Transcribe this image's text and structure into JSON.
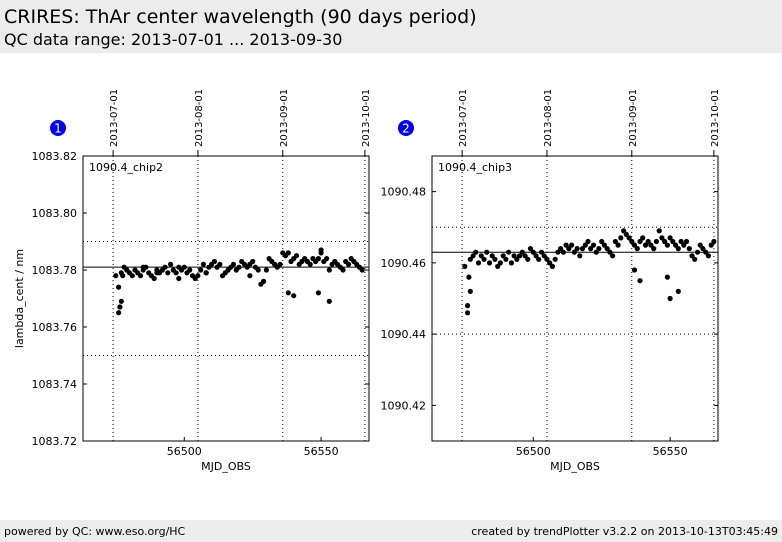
{
  "header": {
    "title": "CRIRES: ThAr center wavelength (90 days period)",
    "subtitle": "QC data range: 2013-07-01 ... 2013-09-30"
  },
  "footer": {
    "left": "powered by QC: www.eso.org/HC",
    "right": "created by trendPlotter v3.2.2 on 2013-10-13T03:45:49"
  },
  "colors": {
    "badge": "#0000ee",
    "marker": "#000000",
    "background": "#ffffff",
    "band": "#ececec"
  },
  "chart_data": [
    {
      "type": "scatter",
      "badge": "1",
      "label": "1090.4_chip2",
      "xlabel": "MJD_OBS",
      "ylabel": "lambda_cent / nm",
      "xlim": [
        56463.0,
        56567.5
      ],
      "ylim": [
        1083.72,
        1083.82
      ],
      "yticks": [
        "1083.72",
        "1083.74",
        "1083.76",
        "1083.78",
        "1083.80",
        "1083.82"
      ],
      "xticks": [
        "56500",
        "56550"
      ],
      "date_ticks": [
        {
          "x": 56474,
          "label": "2013-07-01"
        },
        {
          "x": 56505,
          "label": "2013-08-01"
        },
        {
          "x": 56536,
          "label": "2013-09-01"
        },
        {
          "x": 56566,
          "label": "2013-10-01"
        }
      ],
      "reference_line": 1083.781,
      "limit_lines": [
        1083.79,
        1083.75
      ],
      "grid": "dotted vertical at date ticks",
      "x": [
        56475,
        56476,
        56476.5,
        56477,
        56477.5,
        56478,
        56479,
        56480,
        56481,
        56482,
        56483,
        56484,
        56485,
        56486,
        56487,
        56488,
        56489,
        56490,
        56491,
        56492,
        56493,
        56494,
        56495,
        56496,
        56497,
        56498,
        56499,
        56500,
        56501,
        56502,
        56503,
        56504,
        56505,
        56506,
        56507,
        56508,
        56509,
        56510,
        56511,
        56512,
        56513,
        56514,
        56515,
        56516,
        56517,
        56518,
        56519,
        56520,
        56521,
        56522,
        56523,
        56524,
        56525,
        56526,
        56527,
        56528,
        56529,
        56530,
        56531,
        56532,
        56533,
        56534,
        56535,
        56536,
        56537,
        56538,
        56539,
        56540,
        56541,
        56542,
        56543,
        56544,
        56545,
        56546,
        56547,
        56548,
        56549,
        56550,
        56551,
        56552,
        56553,
        56554,
        56555,
        56556,
        56557,
        56558,
        56559,
        56560,
        56561,
        56562,
        56563,
        56564,
        56565,
        56476,
        56477,
        56485,
        56490,
        56498,
        56508,
        56524,
        56538,
        56540,
        56549,
        56550,
        56553
      ],
      "y": [
        1083.778,
        1083.765,
        1083.767,
        1083.779,
        1083.778,
        1083.781,
        1083.78,
        1083.779,
        1083.778,
        1083.78,
        1083.779,
        1083.778,
        1083.78,
        1083.781,
        1083.779,
        1083.778,
        1083.777,
        1083.78,
        1083.779,
        1083.78,
        1083.781,
        1083.779,
        1083.782,
        1083.78,
        1083.779,
        1083.781,
        1083.78,
        1083.781,
        1083.779,
        1083.78,
        1083.778,
        1083.777,
        1083.778,
        1083.78,
        1083.782,
        1083.779,
        1083.781,
        1083.782,
        1083.783,
        1083.781,
        1083.782,
        1083.778,
        1083.779,
        1083.78,
        1083.781,
        1083.782,
        1083.78,
        1083.781,
        1083.783,
        1083.782,
        1083.781,
        1083.782,
        1083.783,
        1083.781,
        1083.78,
        1083.775,
        1083.776,
        1083.78,
        1083.784,
        1083.783,
        1083.782,
        1083.781,
        1083.782,
        1083.786,
        1083.785,
        1083.786,
        1083.783,
        1083.784,
        1083.785,
        1083.782,
        1083.783,
        1083.784,
        1083.783,
        1083.782,
        1083.784,
        1083.783,
        1083.784,
        1083.786,
        1083.783,
        1083.784,
        1083.78,
        1083.782,
        1083.783,
        1083.782,
        1083.781,
        1083.78,
        1083.783,
        1083.782,
        1083.784,
        1083.783,
        1083.782,
        1083.781,
        1083.78,
        1083.774,
        1083.769,
        1083.781,
        1083.779,
        1083.777,
        1083.779,
        1083.778,
        1083.772,
        1083.771,
        1083.772,
        1083.787,
        1083.769
      ]
    },
    {
      "type": "scatter",
      "badge": "2",
      "label": "1090.4_chip3",
      "xlabel": "MJD_OBS",
      "ylabel": "",
      "xlim": [
        56463.0,
        56567.5
      ],
      "ylim": [
        1090.41,
        1090.49
      ],
      "yticks": [
        "1090.42",
        "1090.44",
        "1090.46",
        "1090.48"
      ],
      "xticks": [
        "56500",
        "56550"
      ],
      "date_ticks": [
        {
          "x": 56474,
          "label": "2013-07-01"
        },
        {
          "x": 56505,
          "label": "2013-08-01"
        },
        {
          "x": 56536,
          "label": "2013-09-01"
        },
        {
          "x": 56566,
          "label": "2013-10-01"
        }
      ],
      "reference_line": 1090.463,
      "limit_lines": [
        1090.47,
        1090.44
      ],
      "grid": "dotted vertical at date ticks",
      "x": [
        56475,
        56476,
        56476.5,
        56477,
        56478,
        56479,
        56480,
        56481,
        56482,
        56483,
        56484,
        56485,
        56486,
        56487,
        56488,
        56489,
        56490,
        56491,
        56492,
        56493,
        56494,
        56495,
        56496,
        56497,
        56498,
        56499,
        56500,
        56501,
        56502,
        56503,
        56504,
        56505,
        56506,
        56507,
        56508,
        56509,
        56510,
        56511,
        56512,
        56513,
        56514,
        56515,
        56516,
        56517,
        56518,
        56519,
        56520,
        56521,
        56522,
        56523,
        56524,
        56525,
        56526,
        56527,
        56528,
        56529,
        56530,
        56531,
        56532,
        56533,
        56534,
        56535,
        56536,
        56537,
        56538,
        56539,
        56540,
        56541,
        56542,
        56543,
        56544,
        56545,
        56546,
        56547,
        56548,
        56549,
        56550,
        56551,
        56552,
        56553,
        56554,
        56555,
        56556,
        56557,
        56558,
        56559,
        56560,
        56561,
        56562,
        56563,
        56564,
        56565,
        56566,
        56476,
        56477,
        56537,
        56539,
        56549,
        56550,
        56553
      ],
      "y": [
        1090.459,
        1090.446,
        1090.456,
        1090.461,
        1090.462,
        1090.463,
        1090.46,
        1090.462,
        1090.461,
        1090.463,
        1090.46,
        1090.462,
        1090.461,
        1090.459,
        1090.46,
        1090.462,
        1090.461,
        1090.463,
        1090.46,
        1090.462,
        1090.461,
        1090.462,
        1090.463,
        1090.462,
        1090.461,
        1090.464,
        1090.463,
        1090.462,
        1090.461,
        1090.463,
        1090.462,
        1090.461,
        1090.46,
        1090.459,
        1090.461,
        1090.463,
        1090.464,
        1090.463,
        1090.465,
        1090.464,
        1090.465,
        1090.463,
        1090.464,
        1090.462,
        1090.464,
        1090.465,
        1090.466,
        1090.464,
        1090.465,
        1090.463,
        1090.464,
        1090.466,
        1090.465,
        1090.464,
        1090.463,
        1090.462,
        1090.466,
        1090.465,
        1090.467,
        1090.469,
        1090.468,
        1090.467,
        1090.466,
        1090.465,
        1090.464,
        1090.466,
        1090.467,
        1090.465,
        1090.466,
        1090.465,
        1090.464,
        1090.466,
        1090.469,
        1090.467,
        1090.466,
        1090.465,
        1090.467,
        1090.466,
        1090.465,
        1090.464,
        1090.466,
        1090.465,
        1090.466,
        1090.464,
        1090.462,
        1090.461,
        1090.463,
        1090.465,
        1090.464,
        1090.463,
        1090.462,
        1090.465,
        1090.466,
        1090.448,
        1090.452,
        1090.458,
        1090.455,
        1090.456,
        1090.45,
        1090.452
      ]
    }
  ]
}
